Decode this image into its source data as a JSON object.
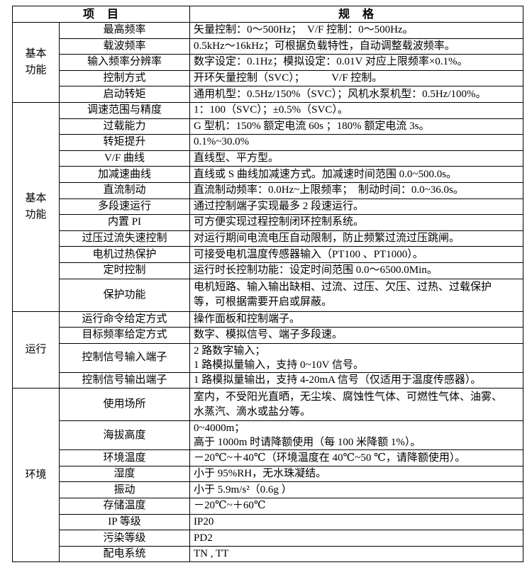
{
  "header": {
    "item": "项　目",
    "spec": "规　格"
  },
  "groups": [
    {
      "label": [
        "基本",
        "功能"
      ],
      "rows": [
        {
          "item": "最高频率",
          "spec": [
            "矢量控制：0～500Hz；　V/F 控制：0～500Hz。"
          ]
        },
        {
          "item": "载波频率",
          "spec": [
            "0.5kHz～16kHz；可根据负载特性，自动调整载波频率。"
          ]
        },
        {
          "item": "输入频率分辨率",
          "spec": [
            "数字设定：0.1Hz；模拟设定：0.01V 对应上限频率×0.1%。"
          ]
        },
        {
          "item": "控制方式",
          "spec": [
            "开环矢量控制（SVC）；　　　V/F 控制。"
          ]
        },
        {
          "item": "启动转矩",
          "spec": [
            "通用机型：0.5Hz/150%（SVC）；风机水泵机型：0.5Hz/100%。"
          ]
        }
      ]
    },
    {
      "label": [
        "基本",
        "功能"
      ],
      "rows": [
        {
          "item": "调速范围与精度",
          "spec": [
            "1：100（SVC）；±0.5%（SVC）。"
          ]
        },
        {
          "item": "过载能力",
          "spec": [
            "G 型机：150% 额定电流 60s ；180% 额定电流 3s。"
          ]
        },
        {
          "item": "转矩提升",
          "spec": [
            "0.1%~30.0%"
          ]
        },
        {
          "item": "V/F 曲线",
          "spec": [
            "直线型、平方型。"
          ]
        },
        {
          "item": "加减速曲线",
          "spec": [
            "直线或 S 曲线加减速方式。加减速时间范围 0.0~500.0s。"
          ]
        },
        {
          "item": "直流制动",
          "spec": [
            "直流制动频率：0.0Hz~上限频率；　制动时间：0.0~36.0s。"
          ]
        },
        {
          "item": "多段速运行",
          "spec": [
            "通过控制端子实现最多 2 段速运行。"
          ]
        },
        {
          "item": "内置 PI",
          "spec": [
            "可方便实现过程控制闭环控制系统。"
          ]
        },
        {
          "item": "过压过流失速控制",
          "spec": [
            "对运行期间电流电压自动限制，防止频繁过流过压跳闸。"
          ]
        },
        {
          "item": "电机过热保护",
          "spec": [
            "可接受电机温度传感器输入（PT100 、PT1000）。"
          ]
        },
        {
          "item": "定时控制",
          "spec": [
            "运行时长控制功能：设定时间范围 0.0～6500.0Min。"
          ]
        },
        {
          "item": "保护功能",
          "spec": [
            "电机短路、输入输出缺相、过流、过压、欠压、过热、过载保护",
            "等，可根据需要开启或屏蔽。"
          ]
        }
      ]
    },
    {
      "label": [
        "运行"
      ],
      "rows": [
        {
          "item": "运行命令给定方式",
          "spec": [
            "操作面板和控制端子。"
          ]
        },
        {
          "item": "目标频率给定方式",
          "spec": [
            "数字、模拟信号、端子多段速。"
          ]
        },
        {
          "item": "控制信号输入端子",
          "spec": [
            "2 路数字输入；",
            "1 路模拟量输入，支持 0~10V 信号。"
          ]
        },
        {
          "item": "控制信号输出端子",
          "spec": [
            "1 路模拟量输出，支持 4-20mA 信号（仅适用于温度传感器）。"
          ]
        }
      ]
    },
    {
      "label": [
        "环境"
      ],
      "rows": [
        {
          "item": "使用场所",
          "spec": [
            "室内，不受阳光直晒，无尘埃、腐蚀性气体、可燃性气体、油雾、",
            "水蒸汽、滴水或盐分等。"
          ]
        },
        {
          "item": "海拔高度",
          "spec": [
            "0~4000m；",
            "高于 1000m 时请降额使用（每 100 米降额 1%）。"
          ]
        },
        {
          "item": "环境温度",
          "spec": [
            "－20℃~＋40℃（环境温度在 40℃~50 ℃，请降额使用）。"
          ]
        },
        {
          "item": "湿度",
          "spec": [
            "小于 95%RH，无水珠凝结。"
          ]
        },
        {
          "item": "振动",
          "spec": [
            "小于 5.9m/s²（0.6g ）"
          ]
        },
        {
          "item": "存储温度",
          "spec": [
            "－20℃~＋60℃"
          ]
        },
        {
          "item": "IP 等级",
          "spec": [
            "IP20"
          ]
        },
        {
          "item": "污染等级",
          "spec": [
            "PD2"
          ]
        },
        {
          "item": "配电系统",
          "spec": [
            "TN , TT"
          ]
        }
      ]
    }
  ]
}
